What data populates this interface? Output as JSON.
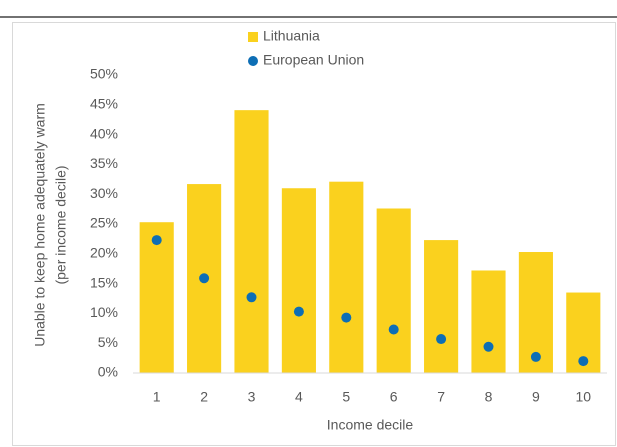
{
  "chart_data": {
    "type": "bar",
    "ylabel": [
      "Unable to keep home adequately warm",
      "(per income decile)"
    ],
    "xlabel": "Income decile",
    "categories": [
      "1",
      "2",
      "3",
      "4",
      "5",
      "6",
      "7",
      "8",
      "9",
      "10"
    ],
    "series": [
      {
        "name": "Lithuania",
        "type": "bar",
        "color": "#fad11e",
        "values": [
          25.3,
          31.7,
          44.1,
          31.0,
          32.1,
          27.6,
          22.3,
          17.2,
          20.3,
          13.5
        ]
      },
      {
        "name": "European Union",
        "type": "scatter",
        "color": "#0d6eb5",
        "values": [
          22.3,
          15.9,
          12.7,
          10.3,
          9.3,
          7.3,
          5.7,
          4.4,
          2.7,
          2.0
        ]
      }
    ],
    "ylim": [
      0,
      50
    ],
    "yticks": [
      {
        "value": 0,
        "label": "0%"
      },
      {
        "value": 5,
        "label": "5%"
      },
      {
        "value": 10,
        "label": "10%"
      },
      {
        "value": 15,
        "label": "15%"
      },
      {
        "value": 20,
        "label": "20%"
      },
      {
        "value": 25,
        "label": "25%"
      },
      {
        "value": 30,
        "label": "30%"
      },
      {
        "value": 35,
        "label": "35%"
      },
      {
        "value": 40,
        "label": "40%"
      },
      {
        "value": 45,
        "label": "45%"
      },
      {
        "value": 50,
        "label": "50%"
      }
    ],
    "grid": false,
    "legend": "top"
  }
}
